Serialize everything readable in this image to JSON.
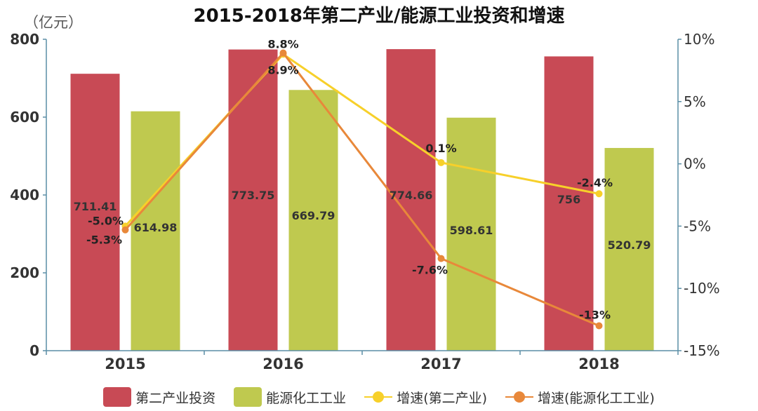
{
  "title": "2015-2018年第二产业/能源工业投资和增速",
  "unit": "（亿元）",
  "colors": {
    "bar1": "#c84a55",
    "bar2": "#bfc94f",
    "line1": "#f7d02a",
    "line2": "#e8883a",
    "axis": "#5a8ea6"
  },
  "chart_data": {
    "type": "bar",
    "categories": [
      "2015",
      "2016",
      "2017",
      "2018"
    ],
    "series": [
      {
        "name": "第二产业投资",
        "type": "bar",
        "axis": "left",
        "values": [
          711.41,
          773.75,
          774.66,
          756
        ],
        "labels": [
          "711.41",
          "773.75",
          "774.66",
          "756"
        ]
      },
      {
        "name": "能源化工工业",
        "type": "bar",
        "axis": "left",
        "values": [
          614.98,
          669.79,
          598.61,
          520.79
        ],
        "labels": [
          "614.98",
          "669.79",
          "598.61",
          "520.79"
        ]
      },
      {
        "name": "增速(第二产业)",
        "type": "line",
        "axis": "right",
        "values": [
          -5.0,
          8.8,
          0.1,
          -2.4
        ],
        "labels": [
          "-5.0%",
          "8.8%",
          "0.1%",
          "-2.4%"
        ]
      },
      {
        "name": "增速(能源化工工业)",
        "type": "line",
        "axis": "right",
        "values": [
          -5.3,
          8.9,
          -7.6,
          -13
        ],
        "labels": [
          "-5.3%",
          "8.9%",
          "-7.6%",
          "-13%"
        ]
      }
    ],
    "y_left": {
      "ylim": [
        0,
        800
      ],
      "ticks": [
        0,
        200,
        400,
        600,
        800
      ],
      "tick_labels": [
        "0",
        "200",
        "400",
        "600",
        "800"
      ]
    },
    "y_right": {
      "ylim": [
        -15,
        10
      ],
      "ticks": [
        -15,
        -10,
        -5,
        0,
        5,
        10
      ],
      "tick_labels": [
        "-15%",
        "-10%",
        "-5%",
        "0%",
        "5%",
        "10%"
      ]
    },
    "grid": false,
    "legend_position": "bottom"
  }
}
